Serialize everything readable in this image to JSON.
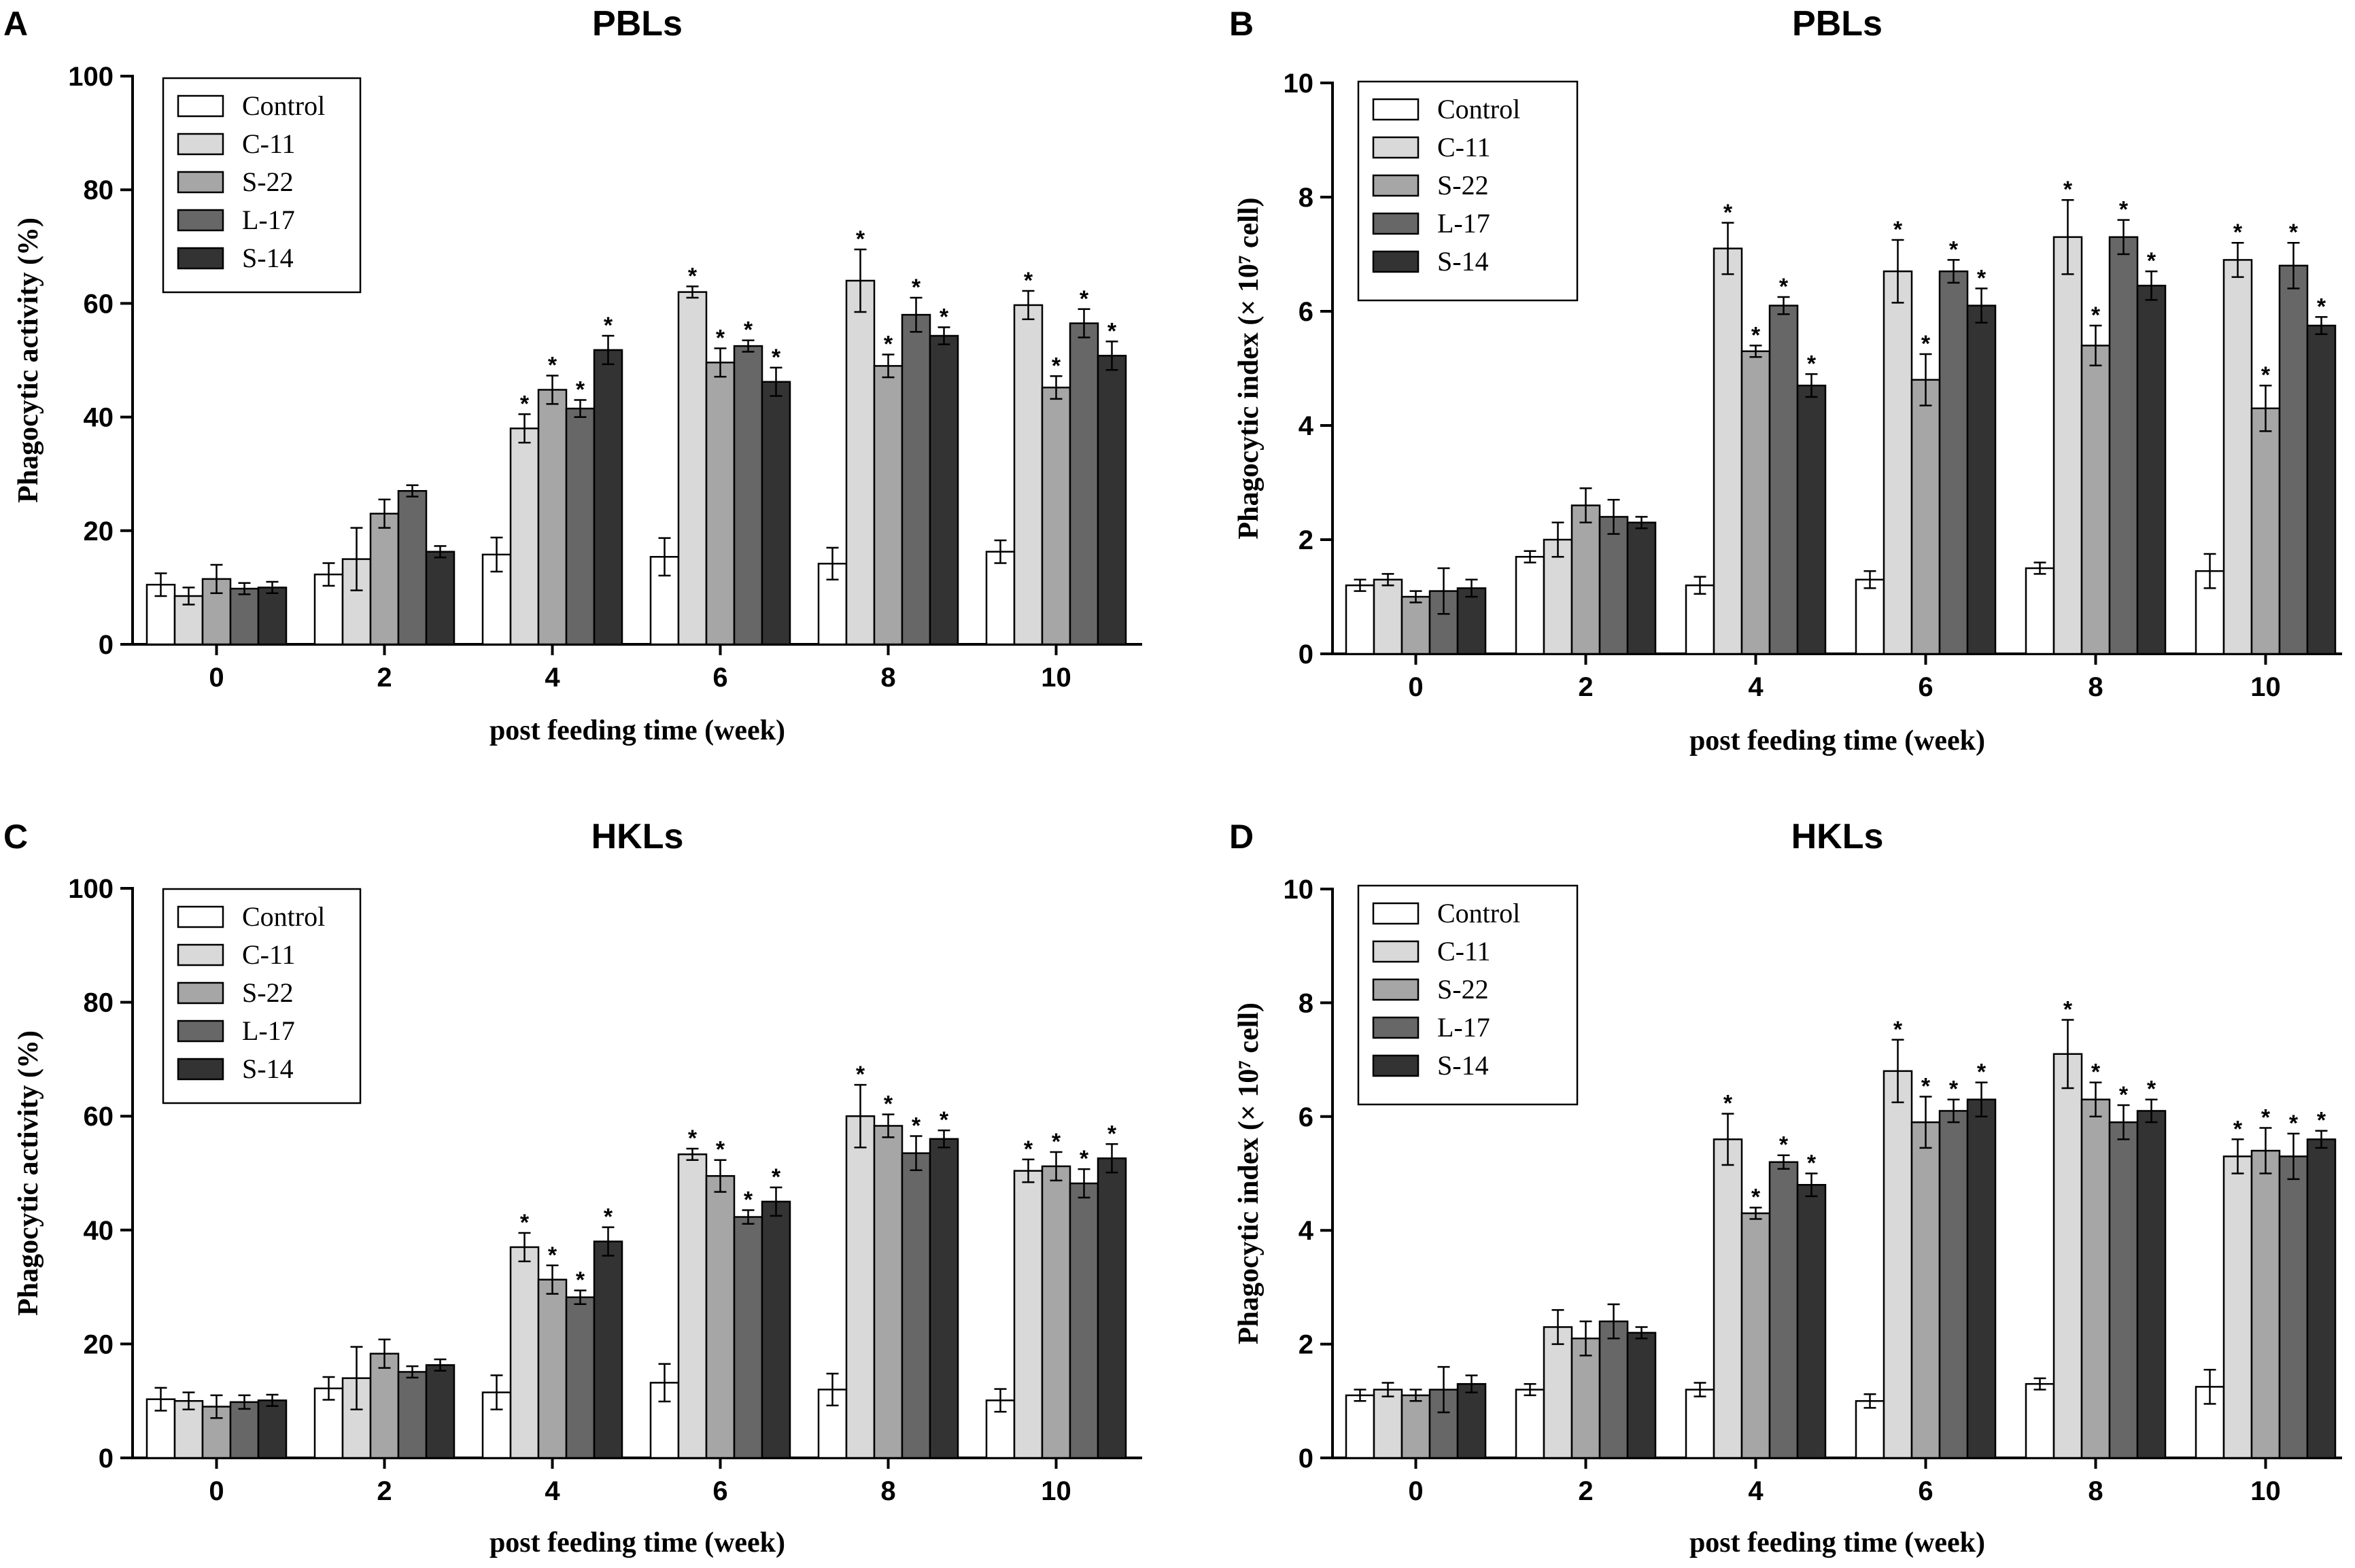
{
  "figure": {
    "series_names": [
      "Control",
      "C-11",
      "S-22",
      "L-17",
      "S-14"
    ],
    "series_colors": [
      "#ffffff",
      "#d9d9d9",
      "#a6a6a6",
      "#676767",
      "#333333"
    ]
  },
  "chart_data": [
    {
      "type": "bar",
      "panel": "A",
      "title": "PBLs",
      "xlabel": "post feeding time (week)",
      "ylabel": "Phagocytic activity (%)",
      "ylim": [
        0,
        100
      ],
      "yticks": [
        0,
        20,
        40,
        60,
        80,
        100
      ],
      "categories": [
        "0",
        "2",
        "4",
        "6",
        "8",
        "10"
      ],
      "legend_position": "top-left",
      "series": [
        {
          "name": "Control",
          "values": [
            10.5,
            12.3,
            15.8,
            15.4,
            14.2,
            16.3
          ],
          "errors": [
            2,
            2,
            3,
            3.3,
            2.8,
            2
          ],
          "sig": [
            false,
            false,
            false,
            false,
            false,
            false
          ]
        },
        {
          "name": "C-11",
          "values": [
            8.5,
            15.0,
            38.0,
            62.0,
            64.0,
            59.7
          ],
          "errors": [
            1.5,
            5.5,
            2.5,
            1,
            5.5,
            2.5
          ],
          "sig": [
            false,
            false,
            true,
            true,
            true,
            true
          ]
        },
        {
          "name": "S-22",
          "values": [
            11.5,
            23.0,
            44.8,
            49.6,
            49.0,
            45.2
          ],
          "errors": [
            2.5,
            2.5,
            2.5,
            2.5,
            2,
            2
          ],
          "sig": [
            false,
            false,
            true,
            true,
            true,
            true
          ]
        },
        {
          "name": "L-17",
          "values": [
            9.8,
            27.0,
            41.5,
            52.5,
            58.0,
            56.5
          ],
          "errors": [
            1,
            1,
            1.5,
            1,
            3,
            2.5
          ],
          "sig": [
            false,
            false,
            true,
            true,
            true,
            true
          ]
        },
        {
          "name": "S-14",
          "values": [
            10.0,
            16.3,
            51.8,
            46.2,
            54.3,
            50.8
          ],
          "errors": [
            1,
            1,
            2.5,
            2.5,
            1.5,
            2.5
          ],
          "sig": [
            false,
            false,
            true,
            true,
            true,
            true
          ]
        }
      ]
    },
    {
      "type": "bar",
      "panel": "B",
      "title": "PBLs",
      "xlabel": "post feeding time (week)",
      "ylabel": "Phagocytic index (× 10⁷ cell)",
      "ylim": [
        0,
        10
      ],
      "yticks": [
        0,
        2,
        4,
        6,
        8,
        10
      ],
      "categories": [
        "0",
        "2",
        "4",
        "6",
        "8",
        "10"
      ],
      "legend_position": "top-left",
      "series": [
        {
          "name": "Control",
          "values": [
            1.2,
            1.7,
            1.2,
            1.3,
            1.5,
            1.45
          ],
          "errors": [
            0.1,
            0.1,
            0.15,
            0.15,
            0.1,
            0.3
          ],
          "sig": [
            false,
            false,
            false,
            false,
            false,
            false
          ]
        },
        {
          "name": "C-11",
          "values": [
            1.3,
            2.0,
            7.1,
            6.7,
            7.3,
            6.9
          ],
          "errors": [
            0.1,
            0.3,
            0.45,
            0.55,
            0.65,
            0.3
          ],
          "sig": [
            false,
            false,
            true,
            true,
            true,
            true
          ]
        },
        {
          "name": "S-22",
          "values": [
            1.0,
            2.6,
            5.3,
            4.8,
            5.4,
            4.3
          ],
          "errors": [
            0.1,
            0.3,
            0.1,
            0.45,
            0.35,
            0.4
          ],
          "sig": [
            false,
            false,
            true,
            true,
            true,
            true
          ]
        },
        {
          "name": "L-17",
          "values": [
            1.1,
            2.4,
            6.1,
            6.7,
            7.3,
            6.8
          ],
          "errors": [
            0.4,
            0.3,
            0.15,
            0.2,
            0.3,
            0.4
          ],
          "sig": [
            false,
            false,
            true,
            true,
            true,
            true
          ]
        },
        {
          "name": "S-14",
          "values": [
            1.15,
            2.3,
            4.7,
            6.1,
            6.45,
            5.75
          ],
          "errors": [
            0.15,
            0.1,
            0.2,
            0.3,
            0.25,
            0.15
          ],
          "sig": [
            false,
            false,
            true,
            true,
            true,
            true
          ]
        }
      ]
    },
    {
      "type": "bar",
      "panel": "C",
      "title": "HKLs",
      "xlabel": "post feeding time (week)",
      "ylabel": "Phagocytic activity (%)",
      "ylim": [
        0,
        100
      ],
      "yticks": [
        0,
        20,
        40,
        60,
        80,
        100
      ],
      "categories": [
        "0",
        "2",
        "4",
        "6",
        "8",
        "10"
      ],
      "legend_position": "top-left",
      "series": [
        {
          "name": "Control",
          "values": [
            10.3,
            12.2,
            11.5,
            13.2,
            12.0,
            10.1
          ],
          "errors": [
            2,
            2,
            3,
            3.3,
            2.8,
            2
          ],
          "sig": [
            false,
            false,
            false,
            false,
            false,
            false
          ]
        },
        {
          "name": "C-11",
          "values": [
            10.0,
            14.0,
            37.0,
            53.3,
            60.0,
            50.4
          ],
          "errors": [
            1.5,
            5.5,
            2.5,
            1,
            5.5,
            2
          ],
          "sig": [
            false,
            false,
            true,
            true,
            true,
            true
          ]
        },
        {
          "name": "S-22",
          "values": [
            9.0,
            18.3,
            31.3,
            49.5,
            58.3,
            51.2
          ],
          "errors": [
            2,
            2.5,
            2.5,
            2.8,
            2,
            2.5
          ],
          "sig": [
            false,
            false,
            true,
            true,
            true,
            true
          ]
        },
        {
          "name": "L-17",
          "values": [
            9.8,
            15.1,
            28.2,
            42.3,
            53.5,
            48.2
          ],
          "errors": [
            1.2,
            1,
            1.2,
            1.2,
            3,
            2.5
          ],
          "sig": [
            false,
            false,
            true,
            true,
            true,
            true
          ]
        },
        {
          "name": "S-14",
          "values": [
            10.1,
            16.3,
            38.0,
            45.0,
            56.0,
            52.6
          ],
          "errors": [
            1,
            1,
            2.5,
            2.5,
            1.5,
            2.5
          ],
          "sig": [
            false,
            false,
            true,
            true,
            true,
            true
          ]
        }
      ]
    },
    {
      "type": "bar",
      "panel": "D",
      "title": "HKLs",
      "xlabel": "post feeding time (week)",
      "ylabel": "Phagocytic index (× 10⁷ cell)",
      "ylim": [
        0,
        10
      ],
      "yticks": [
        0,
        2,
        4,
        6,
        8,
        10
      ],
      "categories": [
        "0",
        "2",
        "4",
        "6",
        "8",
        "10"
      ],
      "legend_position": "top-left",
      "series": [
        {
          "name": "Control",
          "values": [
            1.1,
            1.2,
            1.2,
            1.0,
            1.3,
            1.25
          ],
          "errors": [
            0.1,
            0.1,
            0.12,
            0.12,
            0.1,
            0.3
          ],
          "sig": [
            false,
            false,
            false,
            false,
            false,
            false
          ]
        },
        {
          "name": "C-11",
          "values": [
            1.2,
            2.3,
            5.6,
            6.8,
            7.1,
            5.3
          ],
          "errors": [
            0.12,
            0.3,
            0.45,
            0.55,
            0.6,
            0.3
          ],
          "sig": [
            false,
            false,
            true,
            true,
            true,
            true
          ]
        },
        {
          "name": "S-22",
          "values": [
            1.1,
            2.1,
            4.3,
            5.9,
            6.3,
            5.4
          ],
          "errors": [
            0.1,
            0.3,
            0.1,
            0.45,
            0.3,
            0.4
          ],
          "sig": [
            false,
            false,
            true,
            true,
            true,
            true
          ]
        },
        {
          "name": "L-17",
          "values": [
            1.2,
            2.4,
            5.2,
            6.1,
            5.9,
            5.3
          ],
          "errors": [
            0.4,
            0.3,
            0.12,
            0.2,
            0.3,
            0.4
          ],
          "sig": [
            false,
            false,
            true,
            true,
            true,
            true
          ]
        },
        {
          "name": "S-14",
          "values": [
            1.3,
            2.2,
            4.8,
            6.3,
            6.1,
            5.6
          ],
          "errors": [
            0.15,
            0.1,
            0.2,
            0.3,
            0.2,
            0.15
          ],
          "sig": [
            false,
            false,
            true,
            true,
            true,
            true
          ]
        }
      ]
    }
  ]
}
